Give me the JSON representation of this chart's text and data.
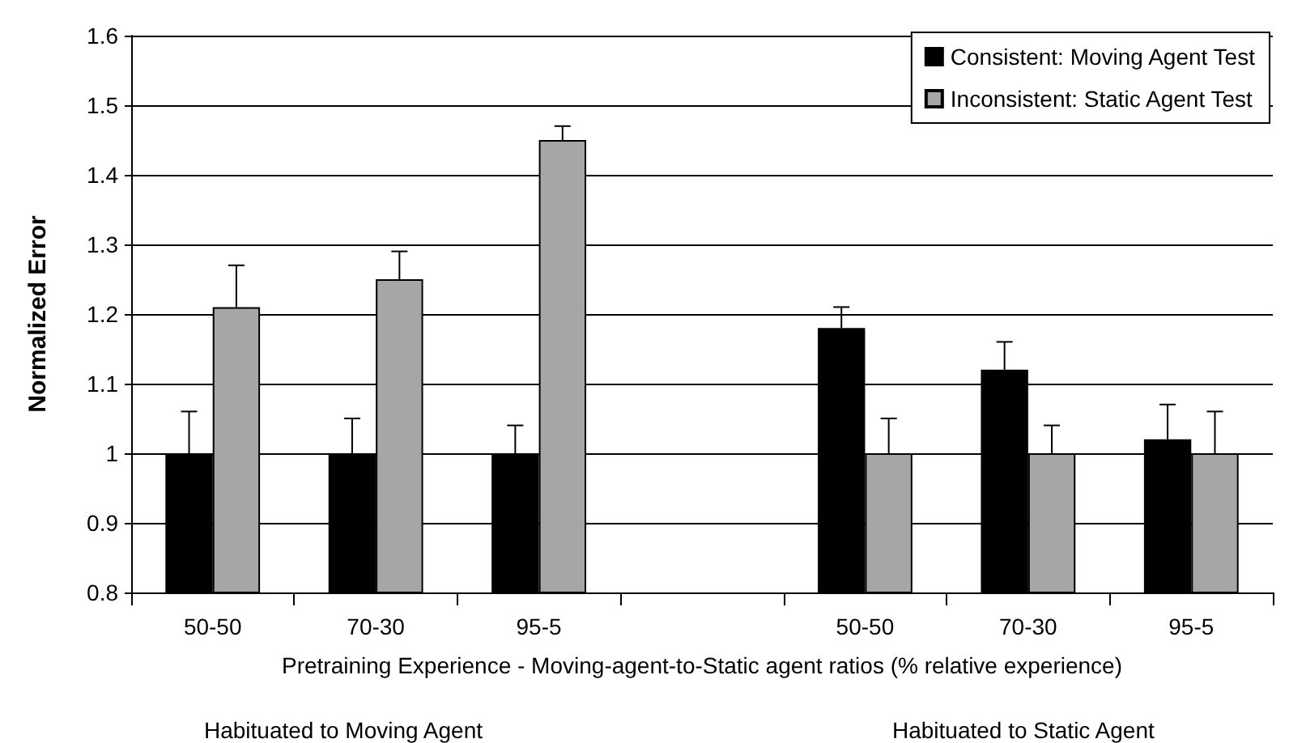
{
  "chart_data": {
    "type": "bar",
    "xlabel": "Pretraining Experience - Moving-agent-to-Static agent ratios (% relative experience)",
    "ylabel": "Normalized Error",
    "categories": [
      "50-50",
      "70-30",
      "95-5",
      null,
      "50-50",
      "70-30",
      "95-5"
    ],
    "series": [
      {
        "name": "Consistent: Moving Agent Test",
        "color": "#000000",
        "values": [
          1,
          1,
          1,
          null,
          1.18,
          1.12,
          1.02
        ],
        "errors": [
          [
            1,
            1.06
          ],
          [
            1,
            1.05
          ],
          [
            1,
            1.04
          ],
          null,
          [
            1.18,
            1.21
          ],
          [
            1.12,
            1.16
          ],
          [
            1.02,
            1.07
          ]
        ]
      },
      {
        "name": "Inconsistent: Static Agent Test",
        "color": "#a6a6a6",
        "values": [
          1.21,
          1.25,
          1.45,
          null,
          1,
          1,
          1
        ],
        "errors": [
          [
            1.21,
            1.27
          ],
          [
            1.25,
            1.29
          ],
          [
            1.45,
            1.47
          ],
          null,
          [
            1,
            1.05
          ],
          [
            1,
            1.04
          ],
          [
            1,
            1.06
          ]
        ]
      }
    ],
    "ylim": [
      0.8,
      1.6
    ],
    "yticks": [
      0.8,
      0.9,
      1,
      1.1,
      1.2,
      1.3,
      1.4,
      1.5,
      1.6
    ],
    "grid": "y",
    "legend": "top right",
    "annotations": [
      "Habituated to Moving Agent",
      "Habituated to Static Agent"
    ]
  }
}
